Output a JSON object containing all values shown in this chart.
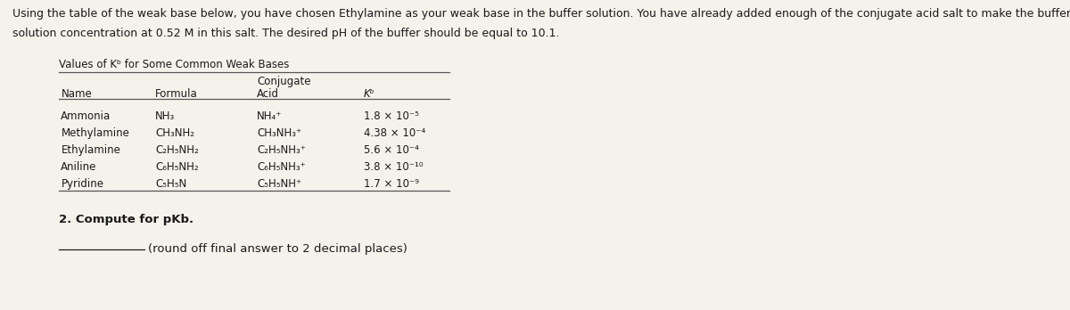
{
  "header_text_line1": "Using the table of the weak base below, you have chosen Ethylamine as your weak base in the buffer solution. You have already added enough of the conjugate acid salt to make the buffer",
  "header_text_line2": "solution concentration at 0.52 M in this salt. The desired pH of the buffer should be equal to 10.1.",
  "table_title": "Values of Kᵇ for Some Common Weak Bases",
  "col_headers_line1": [
    "",
    "",
    "Conjugate",
    ""
  ],
  "col_headers_line2": [
    "Name",
    "Formula",
    "Acid",
    "Kᵇ"
  ],
  "rows": [
    [
      "Ammonia",
      "NH₃",
      "NH₄⁺",
      "1.8 × 10⁻⁵"
    ],
    [
      "Methylamine",
      "CH₃NH₂",
      "CH₃NH₃⁺",
      "4.38 × 10⁻⁴"
    ],
    [
      "Ethylamine",
      "C₂H₅NH₂",
      "C₂H₅NH₃⁺",
      "5.6 × 10⁻⁴"
    ],
    [
      "Aniline",
      "C₆H₅NH₂",
      "C₆H₅NH₃⁺",
      "3.8 × 10⁻¹⁰"
    ],
    [
      "Pyridine",
      "C₅H₅N",
      "C₅H₅NH⁺",
      "1.7 × 10⁻⁹"
    ]
  ],
  "question_text": "2. Compute for pKb.",
  "answer_instruction": "(round off final answer to 2 decimal places)",
  "bg_color": "#e8e4da",
  "panel_color": "#f5f2ec",
  "text_color": "#1a1a1a",
  "font_size_header": 9.0,
  "font_size_table": 8.5,
  "font_size_question": 9.5,
  "table_line_xstart": 0.055,
  "table_line_xend": 0.42
}
